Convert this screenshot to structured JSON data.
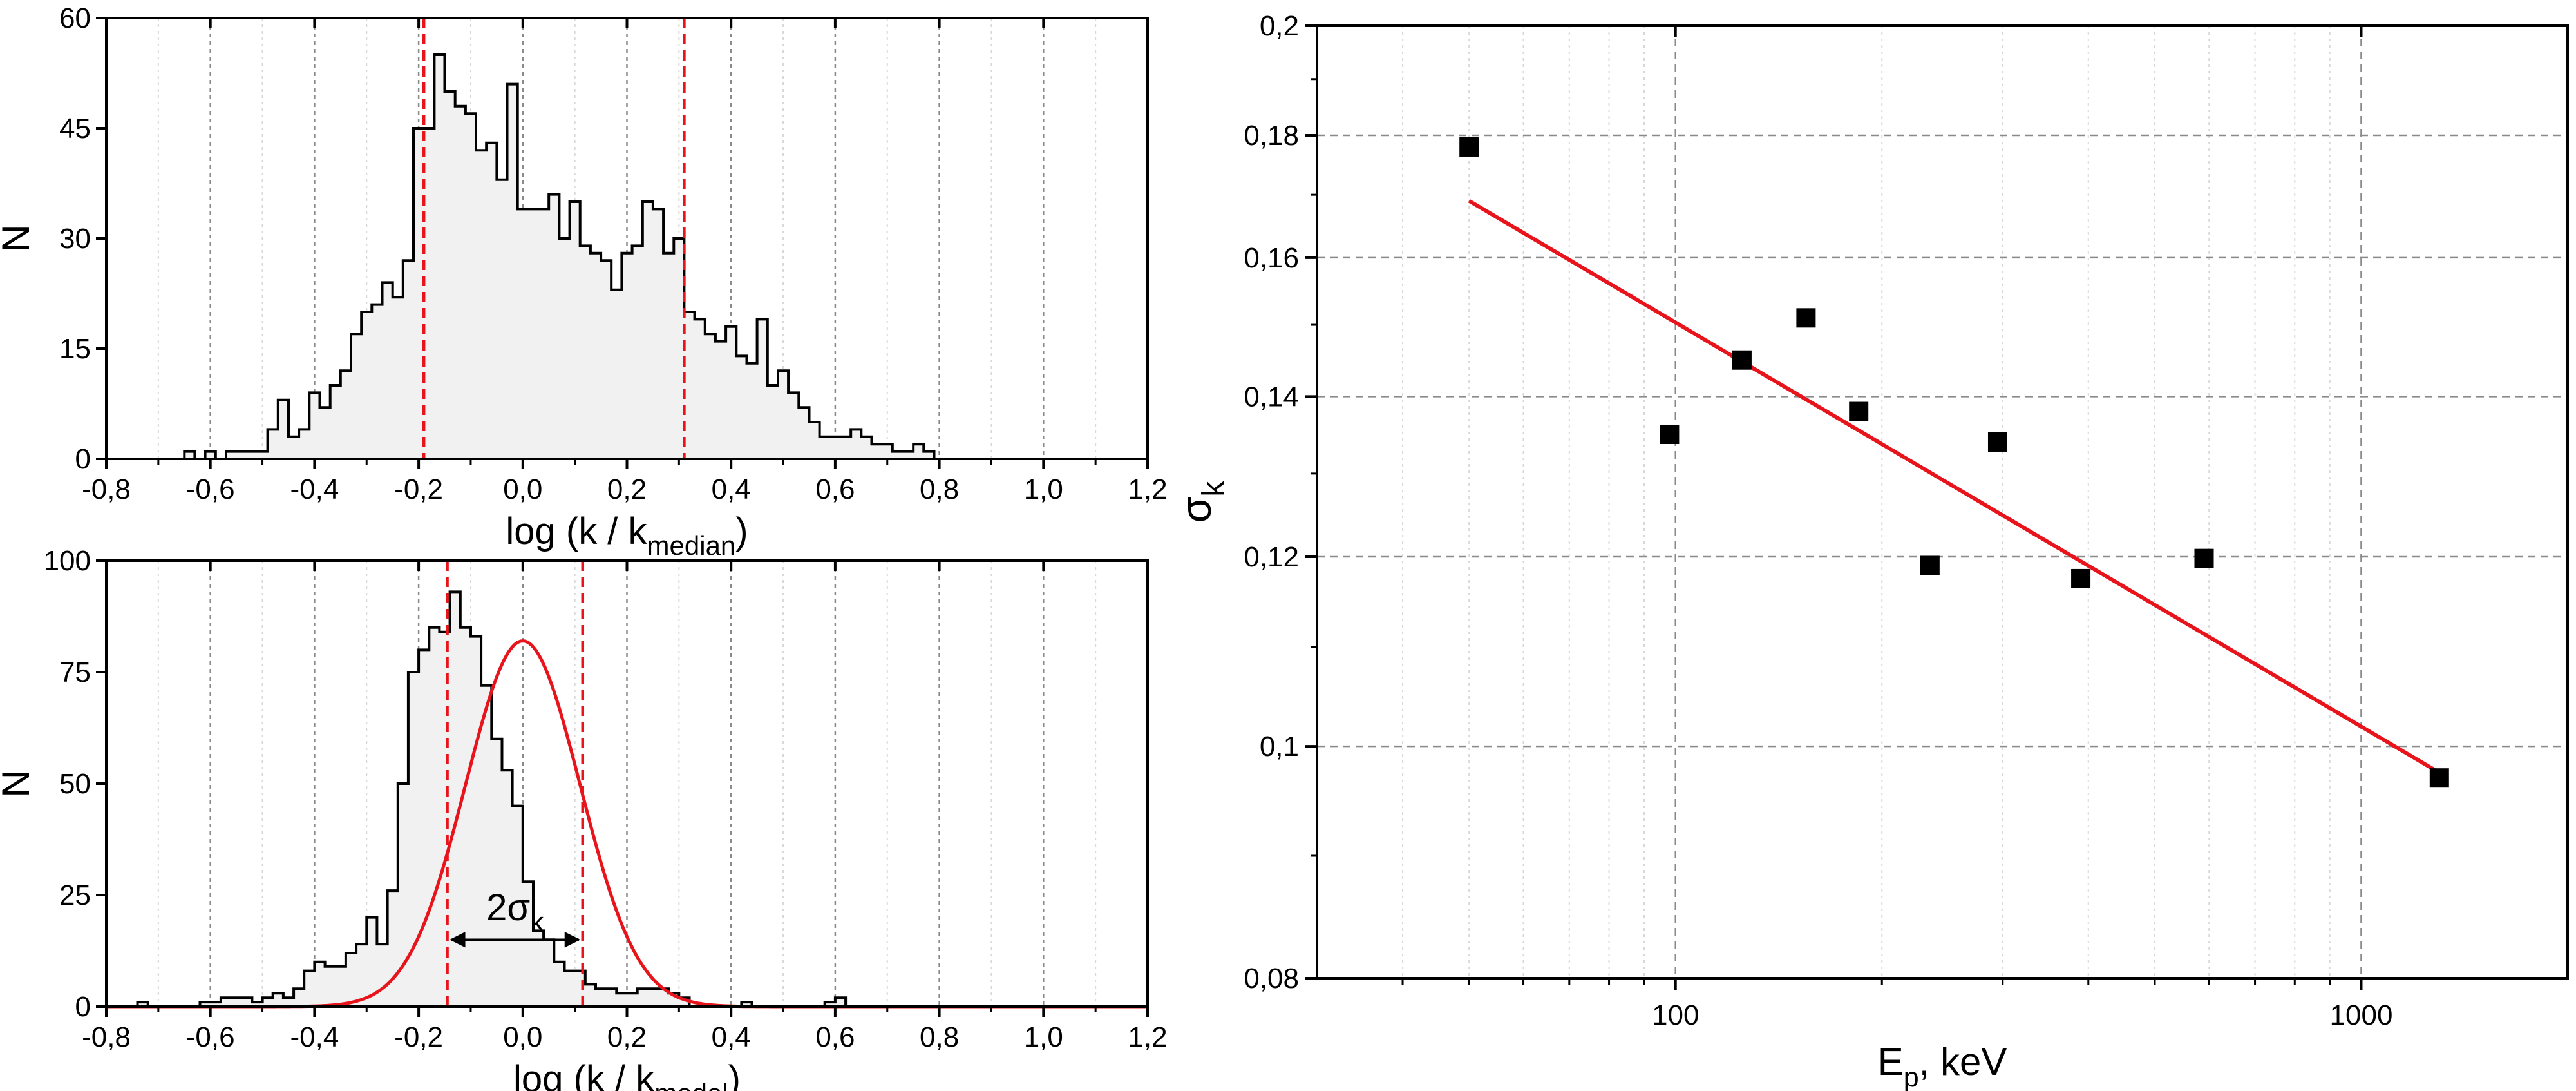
{
  "chart_data": [
    {
      "type": "histogram",
      "xlabel": {
        "main": "log (k / k",
        "sub": "median",
        "tail": ")"
      },
      "ylabel": "N",
      "xlim": [
        -0.8,
        1.2
      ],
      "ylim": [
        0,
        60
      ],
      "xticks": [
        "-0,8",
        "-0,6",
        "-0,4",
        "-0,2",
        "0,0",
        "0,2",
        "0,4",
        "0,6",
        "0,8",
        "1,0",
        "1,2"
      ],
      "xtick_values": [
        -0.8,
        -0.6,
        -0.4,
        -0.2,
        0.0,
        0.2,
        0.4,
        0.6,
        0.8,
        1.0,
        1.2
      ],
      "yticks": [
        "0",
        "15",
        "30",
        "45",
        "60"
      ],
      "ytick_values": [
        0,
        15,
        30,
        45,
        60
      ],
      "bin_start": -0.65,
      "bin_width": 0.02,
      "counts": [
        1,
        0,
        1,
        0,
        1,
        1,
        1,
        1,
        4,
        8,
        3,
        4,
        9,
        7,
        10,
        12,
        17,
        20,
        21,
        24,
        22,
        27,
        45,
        45,
        55,
        50,
        48,
        47,
        42,
        43,
        38,
        51,
        34,
        34,
        34,
        36,
        30,
        35,
        29,
        28,
        27,
        23,
        28,
        29,
        35,
        34,
        28,
        30,
        20,
        19,
        17,
        16,
        18,
        14,
        13,
        19,
        10,
        12,
        9,
        7,
        5,
        3,
        3,
        3,
        4,
        3,
        2,
        2,
        1,
        1,
        2,
        1
      ],
      "vlines": [
        -0.19,
        0.31
      ],
      "grid": "x-dotted"
    },
    {
      "type": "histogram",
      "xlabel": {
        "main": "log (k / k",
        "sub": "model",
        "tail": ")"
      },
      "ylabel": "N",
      "xlim": [
        -0.8,
        1.2
      ],
      "ylim": [
        0,
        100
      ],
      "xticks": [
        "-0,8",
        "-0,6",
        "-0,4",
        "-0,2",
        "0,0",
        "0,2",
        "0,4",
        "0,6",
        "0,8",
        "1,0",
        "1,2"
      ],
      "xtick_values": [
        -0.8,
        -0.6,
        -0.4,
        -0.2,
        0.0,
        0.2,
        0.4,
        0.6,
        0.8,
        1.0,
        1.2
      ],
      "yticks": [
        "0",
        "25",
        "50",
        "75",
        "100"
      ],
      "ytick_values": [
        0,
        25,
        50,
        75,
        100
      ],
      "bin_start": -0.76,
      "bin_width": 0.02,
      "counts": [
        0,
        1,
        0,
        0,
        0,
        0,
        0,
        1,
        1,
        2,
        2,
        2,
        1,
        2,
        3,
        2,
        4,
        8,
        10,
        9,
        9,
        12,
        14,
        20,
        14,
        26,
        50,
        75,
        80,
        85,
        84,
        93,
        85,
        83,
        72,
        60,
        53,
        45,
        28,
        17,
        15,
        10,
        8,
        8,
        5,
        4,
        4,
        3,
        3,
        4,
        4,
        4,
        3,
        2,
        0,
        0,
        0,
        0,
        0,
        1,
        0,
        0,
        0,
        0,
        0,
        0,
        0,
        1,
        2,
        0,
        0
      ],
      "vlines": [
        -0.145,
        0.115
      ],
      "gauss_fit": {
        "amplitude": 82,
        "mean": 0.0,
        "sigma": 0.11
      },
      "annotation": {
        "main": "2σ",
        "sub": "k"
      },
      "grid": "x-dotted"
    },
    {
      "type": "scatter",
      "xlabel": {
        "main": "E",
        "sub": "p",
        "tail": ", keV"
      },
      "ylabel": {
        "main": "σ",
        "sub": "k"
      },
      "xscale": "log",
      "yscale": "log",
      "xlim": [
        30,
        2000
      ],
      "ylim": [
        0.08,
        0.2
      ],
      "xticks": [
        "100",
        "1000"
      ],
      "xtick_values": [
        100,
        1000
      ],
      "yticks": [
        "0,08",
        "0,1",
        "0,12",
        "0,14",
        "0,16",
        "0,18",
        "0,2"
      ],
      "ytick_values": [
        0.08,
        0.1,
        0.12,
        0.14,
        0.16,
        0.18,
        0.2
      ],
      "points": [
        {
          "x": 50,
          "y": 0.178
        },
        {
          "x": 98,
          "y": 0.135
        },
        {
          "x": 125,
          "y": 0.145
        },
        {
          "x": 155,
          "y": 0.151
        },
        {
          "x": 185,
          "y": 0.138
        },
        {
          "x": 235,
          "y": 0.119
        },
        {
          "x": 295,
          "y": 0.134
        },
        {
          "x": 390,
          "y": 0.1175
        },
        {
          "x": 590,
          "y": 0.1198
        },
        {
          "x": 1300,
          "y": 0.097
        }
      ],
      "fit_line": [
        {
          "x": 50,
          "y": 0.169
        },
        {
          "x": 1300,
          "y": 0.0975
        }
      ],
      "grid": "dashed"
    }
  ],
  "colors": {
    "step": "#000000",
    "fill": "#f1f1f1",
    "vline": "#e8141b",
    "fit": "#e8141b",
    "marker": "#000000",
    "grid_major": "#8a8a8a",
    "grid_minor": "#d8d8d8"
  }
}
